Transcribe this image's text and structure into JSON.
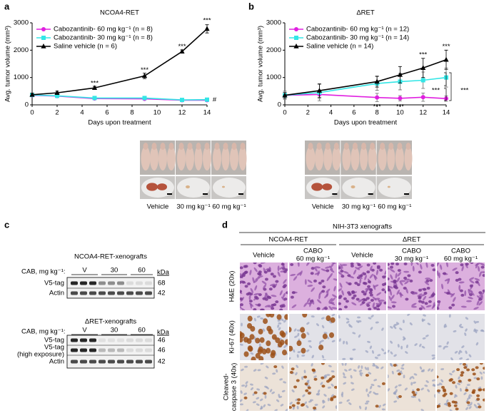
{
  "panel_labels": [
    "a",
    "b",
    "c",
    "d"
  ],
  "chart_data": [
    {
      "type": "line",
      "title": "NCOA4-RET",
      "x_label": "Days upon treatment",
      "y_label": "Avg. tumor volume (mm³)",
      "x": [
        0,
        2,
        5,
        9,
        12,
        14
      ],
      "xlim": [
        0,
        14
      ],
      "xticks": [
        0,
        2,
        4,
        6,
        8,
        10,
        12,
        14
      ],
      "ylim": [
        0,
        3000
      ],
      "yticks": [
        0,
        1000,
        2000,
        3000
      ],
      "legend": "upper left",
      "series": [
        {
          "name": "Cabozantinib- 60 mg kg⁻¹ (n = 8)",
          "color": "#e020e0",
          "marker": "circle",
          "values": [
            350,
            320,
            230,
            220,
            170,
            170
          ],
          "errors": [
            40,
            30,
            30,
            30,
            20,
            20
          ]
        },
        {
          "name": "Cabozantinib- 30 mg kg⁻¹ (n = 8)",
          "color": "#33e6e6",
          "marker": "square",
          "values": [
            360,
            330,
            250,
            250,
            180,
            190
          ],
          "errors": [
            40,
            30,
            30,
            30,
            20,
            20
          ]
        },
        {
          "name": "Saline vehicle (n = 6)",
          "color": "#000000",
          "marker": "triangle",
          "values": [
            370,
            440,
            620,
            1060,
            1950,
            2780
          ],
          "errors": [
            60,
            60,
            60,
            100,
            60,
            150
          ]
        }
      ],
      "annotations": [
        {
          "text": "***",
          "x": 5,
          "y": 780
        },
        {
          "text": "***",
          "x": 9,
          "y": 1270
        },
        {
          "text": "***",
          "x": 12,
          "y": 2130
        },
        {
          "text": "***",
          "x": 14,
          "y": 3080
        },
        {
          "text": "#",
          "x": 14.6,
          "y": 180
        }
      ]
    },
    {
      "type": "line",
      "title": "ΔRET",
      "x_label": "Days upon treatment",
      "y_label": "Avg. tumor volume (mm³)",
      "x": [
        0,
        3,
        8,
        10,
        12,
        14
      ],
      "xlim": [
        0,
        14
      ],
      "xticks": [
        0,
        2,
        4,
        6,
        8,
        10,
        12,
        14
      ],
      "ylim": [
        0,
        3000
      ],
      "yticks": [
        0,
        1000,
        2000,
        3000
      ],
      "legend": "upper left",
      "series": [
        {
          "name": "Cabozantinib- 60 mg kg⁻¹ (n = 12)",
          "color": "#e020e0",
          "marker": "circle",
          "values": [
            350,
            380,
            270,
            240,
            280,
            230
          ],
          "errors": [
            100,
            150,
            150,
            100,
            150,
            100
          ]
        },
        {
          "name": "Cabozantinib- 30 mg kg⁻¹ (n = 14)",
          "color": "#33e6e6",
          "marker": "square",
          "values": [
            350,
            450,
            780,
            850,
            900,
            1000
          ],
          "errors": [
            150,
            300,
            250,
            300,
            300,
            350
          ]
        },
        {
          "name": "Saline vehicle (n = 14)",
          "color": "#000000",
          "marker": "triangle",
          "values": [
            350,
            520,
            850,
            1100,
            1350,
            1650
          ],
          "errors": [
            100,
            250,
            200,
            300,
            350,
            350
          ]
        }
      ],
      "annotations": [
        {
          "text": "***",
          "x": 12,
          "y": 1820
        },
        {
          "text": "***",
          "x": 14,
          "y": 2120
        },
        {
          "text": "***",
          "x": 8,
          "y": -80
        },
        {
          "text": "***",
          "x": 10,
          "y": -80
        },
        {
          "text": "***",
          "x": 13.1,
          "y": 520
        },
        {
          "text": "***",
          "x": 15.6,
          "y": 520
        }
      ]
    }
  ],
  "photos": [
    {
      "labels": [
        {
          "text": "Vehicle",
          "color": "#000000"
        },
        {
          "text": "30 mg kg⁻¹",
          "color": "#1e9a1e"
        },
        {
          "text": "60 mg kg⁻¹",
          "color": "#e0201c"
        }
      ]
    },
    {
      "labels": [
        {
          "text": "Vehicle",
          "color": "#000000"
        },
        {
          "text": "30 mg kg⁻¹",
          "color": "#1e9a1e"
        },
        {
          "text": "60 mg kg⁻¹",
          "color": "#e0201c"
        }
      ]
    }
  ],
  "blots": {
    "cab_label": "CAB, mg kg⁻¹:",
    "groups": [
      "V",
      "30",
      "60"
    ],
    "kda_label": "kDa",
    "panels": [
      {
        "title": "NCOA4-RET-xenografts",
        "rows": [
          {
            "label": "V5-tag",
            "kda": 68
          },
          {
            "label": "Actin",
            "kda": 42
          }
        ]
      },
      {
        "title": "ΔRET-xenografts",
        "rows": [
          {
            "label": "V5-tag",
            "kda": 46
          },
          {
            "label": "V5-tag",
            "sublabel": "(high exposure)",
            "kda": 46
          },
          {
            "label": "Actin",
            "kda": 42
          }
        ]
      }
    ]
  },
  "histology": {
    "title": "NIH-3T3 xenografts",
    "groups": [
      "NCOA4-RET",
      "ΔRET"
    ],
    "columns": [
      [
        "Vehicle"
      ],
      [
        "CABO",
        "60 mg kg⁻¹"
      ],
      [
        "Vehicle"
      ],
      [
        "CABO",
        "30 mg kg⁻¹"
      ],
      [
        "CABO",
        "60 mg kg⁻¹"
      ]
    ],
    "rows": [
      [
        "H&E (20x)"
      ],
      [
        "Ki-67 (40x)"
      ],
      [
        "Cleaved-",
        "caspase 3 (40x)"
      ]
    ]
  }
}
